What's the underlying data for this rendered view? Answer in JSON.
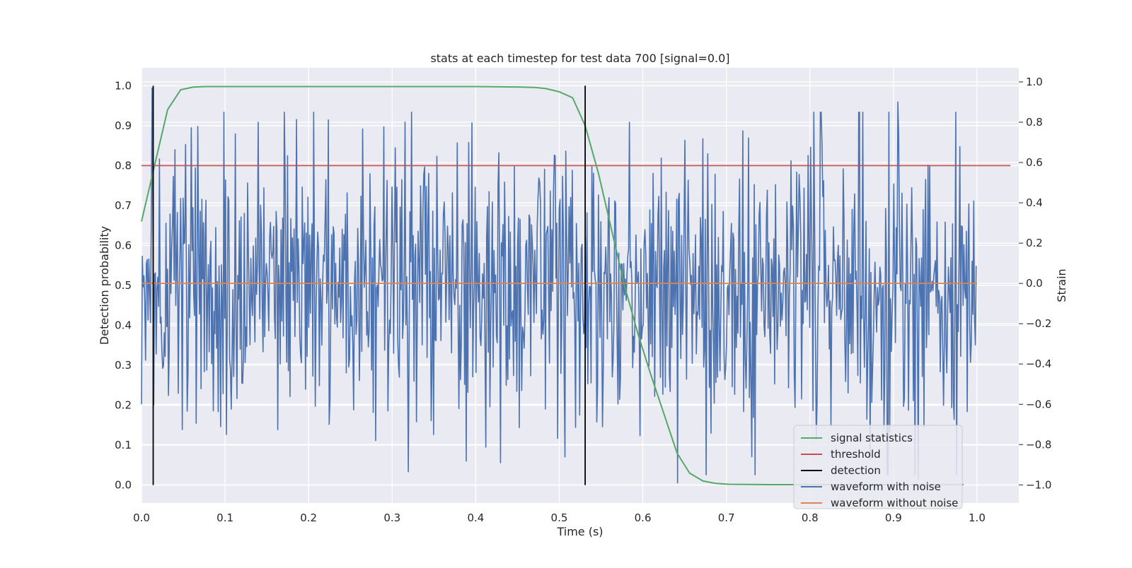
{
  "chart_data": {
    "type": "line",
    "title": "stats at each timestep for test data 700 [signal=0.0]",
    "xlabel": "Time (s)",
    "ylabel": "Detection probability",
    "y2label": "Strain",
    "xlim": [
      0.0,
      1.05
    ],
    "ylim": [
      -0.045,
      1.045
    ],
    "y2lim": [
      -1.09,
      1.07
    ],
    "xticks": [
      "0.0",
      "0.1",
      "0.2",
      "0.3",
      "0.4",
      "0.5",
      "0.6",
      "0.7",
      "0.8",
      "0.9",
      "1.0"
    ],
    "yticks": [
      "0.0",
      "0.1",
      "0.2",
      "0.3",
      "0.4",
      "0.5",
      "0.6",
      "0.7",
      "0.8",
      "0.9",
      "1.0"
    ],
    "y2ticks": [
      "1.0",
      "0.8",
      "0.6",
      "0.4",
      "0.2",
      "0.0",
      "−0.2",
      "−0.4",
      "−0.6",
      "−0.8",
      "−1.0"
    ],
    "grid": true,
    "legend_position": "lower-right",
    "series": [
      {
        "name": "signal statistics",
        "axis": "left",
        "color": "#55a868",
        "x": [
          0.0,
          0.0156,
          0.0312,
          0.0469,
          0.0625,
          0.0781,
          0.1,
          0.2,
          0.3,
          0.4,
          0.45,
          0.47,
          0.484,
          0.5,
          0.516,
          0.531,
          0.547,
          0.5625,
          0.578,
          0.594,
          0.609,
          0.625,
          0.641,
          0.656,
          0.672,
          0.6875,
          0.703,
          0.75,
          0.8,
          0.9,
          0.984
        ],
        "values": [
          0.66,
          0.8,
          0.94,
          0.99,
          0.997,
          0.998,
          0.998,
          0.998,
          0.998,
          0.998,
          0.997,
          0.996,
          0.993,
          0.985,
          0.97,
          0.9,
          0.78,
          0.64,
          0.5,
          0.38,
          0.28,
          0.18,
          0.08,
          0.03,
          0.01,
          0.004,
          0.002,
          0.001,
          0.001,
          0.001,
          0.001
        ]
      },
      {
        "name": "threshold",
        "axis": "left",
        "color": "#c44e52",
        "x": [
          0.0,
          1.04
        ],
        "values": [
          0.8,
          0.8
        ]
      },
      {
        "name": "detection",
        "axis": "left",
        "color": "#000000",
        "segments": [
          {
            "x": 0.014,
            "from": 0.0,
            "to": 1.0
          },
          {
            "x": 0.531,
            "from": 0.0,
            "to": 1.0
          }
        ]
      },
      {
        "name": "waveform with noise",
        "axis": "right",
        "color": "#4c72b0",
        "samples": 1024,
        "x_range": [
          0.0,
          0.999
        ],
        "spikes": [
          {
            "x": 0.0,
            "value": -0.6
          },
          {
            "x": 0.013,
            "value": 0.97
          },
          {
            "x": 0.018,
            "value": -0.35
          },
          {
            "x": 0.102,
            "value": -0.75
          },
          {
            "x": 0.14,
            "value": 0.8
          },
          {
            "x": 0.28,
            "value": -0.78
          },
          {
            "x": 0.35,
            "value": -0.75
          },
          {
            "x": 0.43,
            "value": -0.89
          },
          {
            "x": 0.584,
            "value": 0.8
          },
          {
            "x": 0.642,
            "value": -0.99
          },
          {
            "x": 0.73,
            "value": -0.86
          },
          {
            "x": 0.905,
            "value": 0.9
          },
          {
            "x": 0.93,
            "value": -0.97
          }
        ],
        "amplitude": 0.36
      },
      {
        "name": "waveform without noise",
        "axis": "right",
        "color": "#dd8452",
        "x": [
          0.0,
          1.0
        ],
        "values": [
          0.0,
          0.0
        ]
      }
    ]
  }
}
